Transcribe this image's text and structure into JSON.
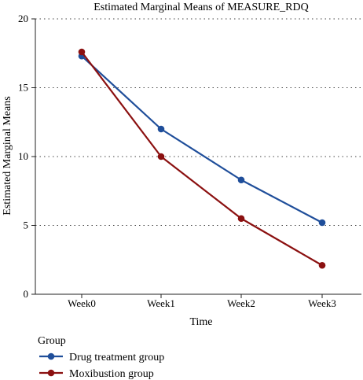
{
  "chart_data": {
    "type": "line",
    "title": "Estimated Marginal Means of MEASURE_RDQ",
    "xlabel": "Time",
    "ylabel": "Estimated Marginal Means",
    "categories": [
      "Week0",
      "Week1",
      "Week2",
      "Week3"
    ],
    "ylim": [
      0,
      20
    ],
    "yticks": [
      0,
      5,
      10,
      15,
      20
    ],
    "grid": "horizontal-dotted",
    "legend": {
      "title": "Group",
      "placement": "bottom-left"
    },
    "series": [
      {
        "name": "Drug treatment group",
        "color": "#1f4e9a",
        "values": [
          17.3,
          12.0,
          8.3,
          5.2
        ]
      },
      {
        "name": "Moxibustion group",
        "color": "#8b1010",
        "values": [
          17.6,
          10.0,
          5.5,
          2.1
        ]
      }
    ]
  }
}
